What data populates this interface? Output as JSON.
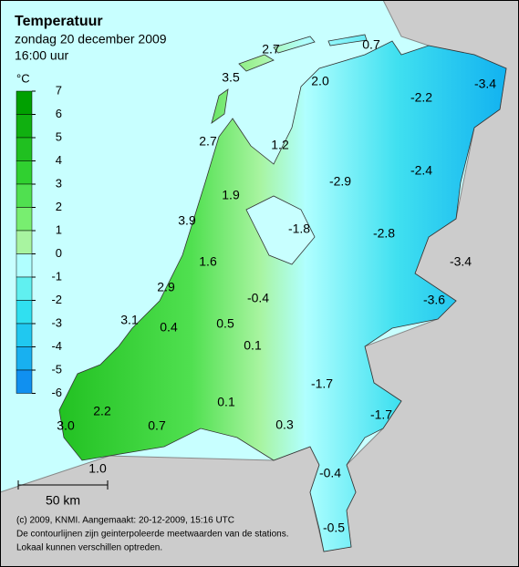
{
  "header": {
    "title": "Temperatuur",
    "date": "zondag 20 december 2009",
    "time": "16:00 uur"
  },
  "legend": {
    "unit": "°C",
    "ticks": [
      7,
      6,
      5,
      4,
      3,
      2,
      1,
      0,
      -1,
      -2,
      -3,
      -4,
      -5,
      -6
    ],
    "colors": [
      "#00a000",
      "#10b010",
      "#20c020",
      "#30d030",
      "#50e050",
      "#78ee70",
      "#a8f4a0",
      "#b0ffff",
      "#60f0f0",
      "#30e0f0",
      "#20c8f0",
      "#18b0f0",
      "#1090f0"
    ]
  },
  "stations": [
    "2.7",
    "0.7",
    "3.5",
    "2.0",
    "-2.2",
    "-3.4",
    "2.7",
    "1.2",
    "-2.9",
    "-2.4",
    "1.9",
    "3.9",
    "-1.8",
    "-2.8",
    "1.6",
    "-3.4",
    "2.9",
    "-0.4",
    "-3.6",
    "3.1",
    "0.4",
    "0.5",
    "0.1",
    "-1.7",
    "-1.7",
    "0.1",
    "2.2",
    "0.3",
    "3.0",
    "0.7",
    "1.0",
    "-0.4",
    "-0.5"
  ],
  "scale": "50 km",
  "footer": [
    "(c) 2009, KNMI. Aangemaakt: 20-12-2009, 15:16 UTC",
    "De contourlijnen zijn geinterpoleerde meetwaarden van de stations.",
    "Lokaal kunnen verschillen optreden."
  ]
}
